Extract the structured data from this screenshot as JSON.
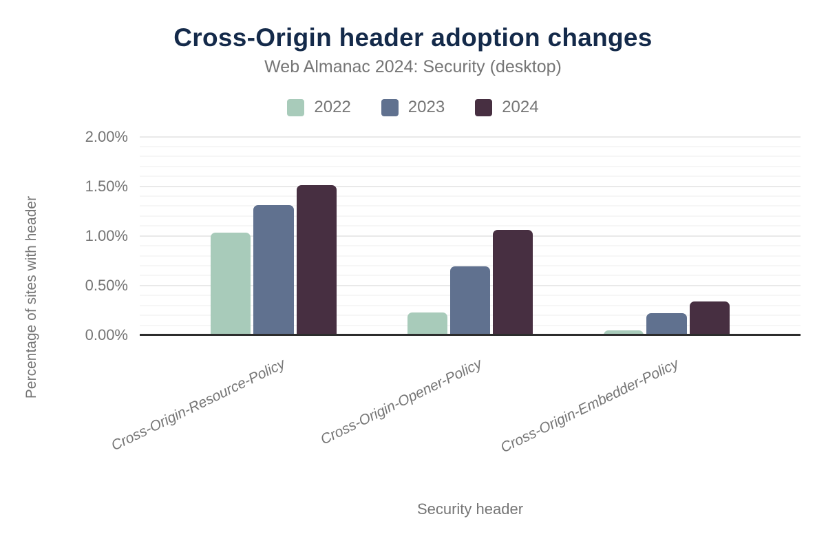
{
  "header": {
    "title": "Cross-Origin header adoption changes",
    "subtitle": "Web Almanac 2024: Security (desktop)"
  },
  "chart_data": {
    "type": "bar",
    "title": "Cross-Origin header adoption changes",
    "subtitle": "Web Almanac 2024: Security (desktop)",
    "categories": [
      "Cross-Origin-Resource-Policy",
      "Cross-Origin-Opener-Policy",
      "Cross-Origin-Embedder-Policy"
    ],
    "series": [
      {
        "name": "2022",
        "color": "#a8cbba",
        "values": [
          1.03,
          0.23,
          0.05
        ]
      },
      {
        "name": "2023",
        "color": "#60718f",
        "values": [
          1.31,
          0.69,
          0.22
        ]
      },
      {
        "name": "2024",
        "color": "#472f41",
        "values": [
          1.51,
          1.06,
          0.34
        ]
      }
    ],
    "xlabel": "Security header",
    "ylabel": "Percentage of sites with header",
    "ylim": [
      0,
      2.0
    ],
    "yticks": [
      {
        "value": 0.0,
        "label": "0.00%"
      },
      {
        "value": 0.5,
        "label": "0.50%"
      },
      {
        "value": 1.0,
        "label": "1.00%"
      },
      {
        "value": 1.5,
        "label": "1.50%"
      },
      {
        "value": 2.0,
        "label": "2.00%"
      }
    ],
    "grid": {
      "minor_step": 0.1,
      "major_step": 0.5
    },
    "legend_position": "top",
    "value_suffix": "%"
  },
  "colors": {
    "title": "#142a4a",
    "muted_text": "#757575",
    "axis_line": "#2d2d2d",
    "grid_major": "#e9e9e9",
    "grid_minor": "#f6f6f6"
  }
}
